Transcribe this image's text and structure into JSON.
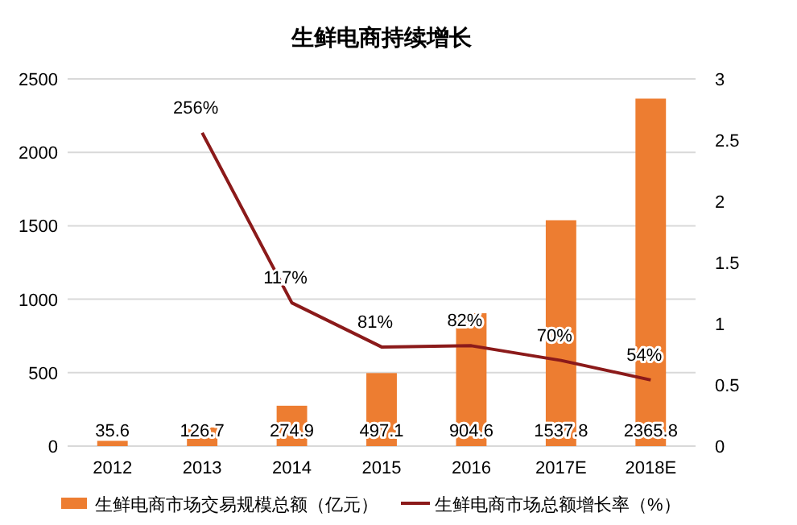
{
  "chart_data": {
    "type": "bar",
    "title": "生鲜电商持续增长",
    "categories": [
      "2012",
      "2013",
      "2014",
      "2015",
      "2016",
      "2017E",
      "2018E"
    ],
    "series": [
      {
        "name": "生鲜电商市场交易规模总额（亿元）",
        "color": "#ed7d31",
        "values": [
          35.6,
          126.7,
          274.9,
          497.1,
          904.6,
          1537.8,
          2365.8
        ],
        "value_labels": [
          "35.6",
          "126.7",
          "274.9",
          "497.1",
          "904.6",
          "1537.8",
          "2365.8"
        ]
      },
      {
        "name": "生鲜电商市场总额增长率（%）",
        "type": "line",
        "axis": "y2",
        "color": "#8b1a1a",
        "values": [
          null,
          2.56,
          1.17,
          0.81,
          0.82,
          0.7,
          0.54
        ],
        "value_labels": [
          null,
          "256%",
          "117%",
          "81%",
          "82%",
          "70%",
          "54%"
        ]
      }
    ],
    "ylim": [
      0,
      2500
    ],
    "yticks": [
      0,
      500,
      1000,
      1500,
      2000,
      2500
    ],
    "y2lim": [
      0,
      3
    ],
    "y2ticks": [
      0,
      {
        "value": 0.5,
        "label": "0.5"
      },
      1,
      {
        "value": 1.5,
        "label": "1.5"
      },
      2,
      {
        "value": 2.5,
        "label": "2.5"
      },
      3
    ],
    "grid": "y",
    "legend": "bottom"
  }
}
